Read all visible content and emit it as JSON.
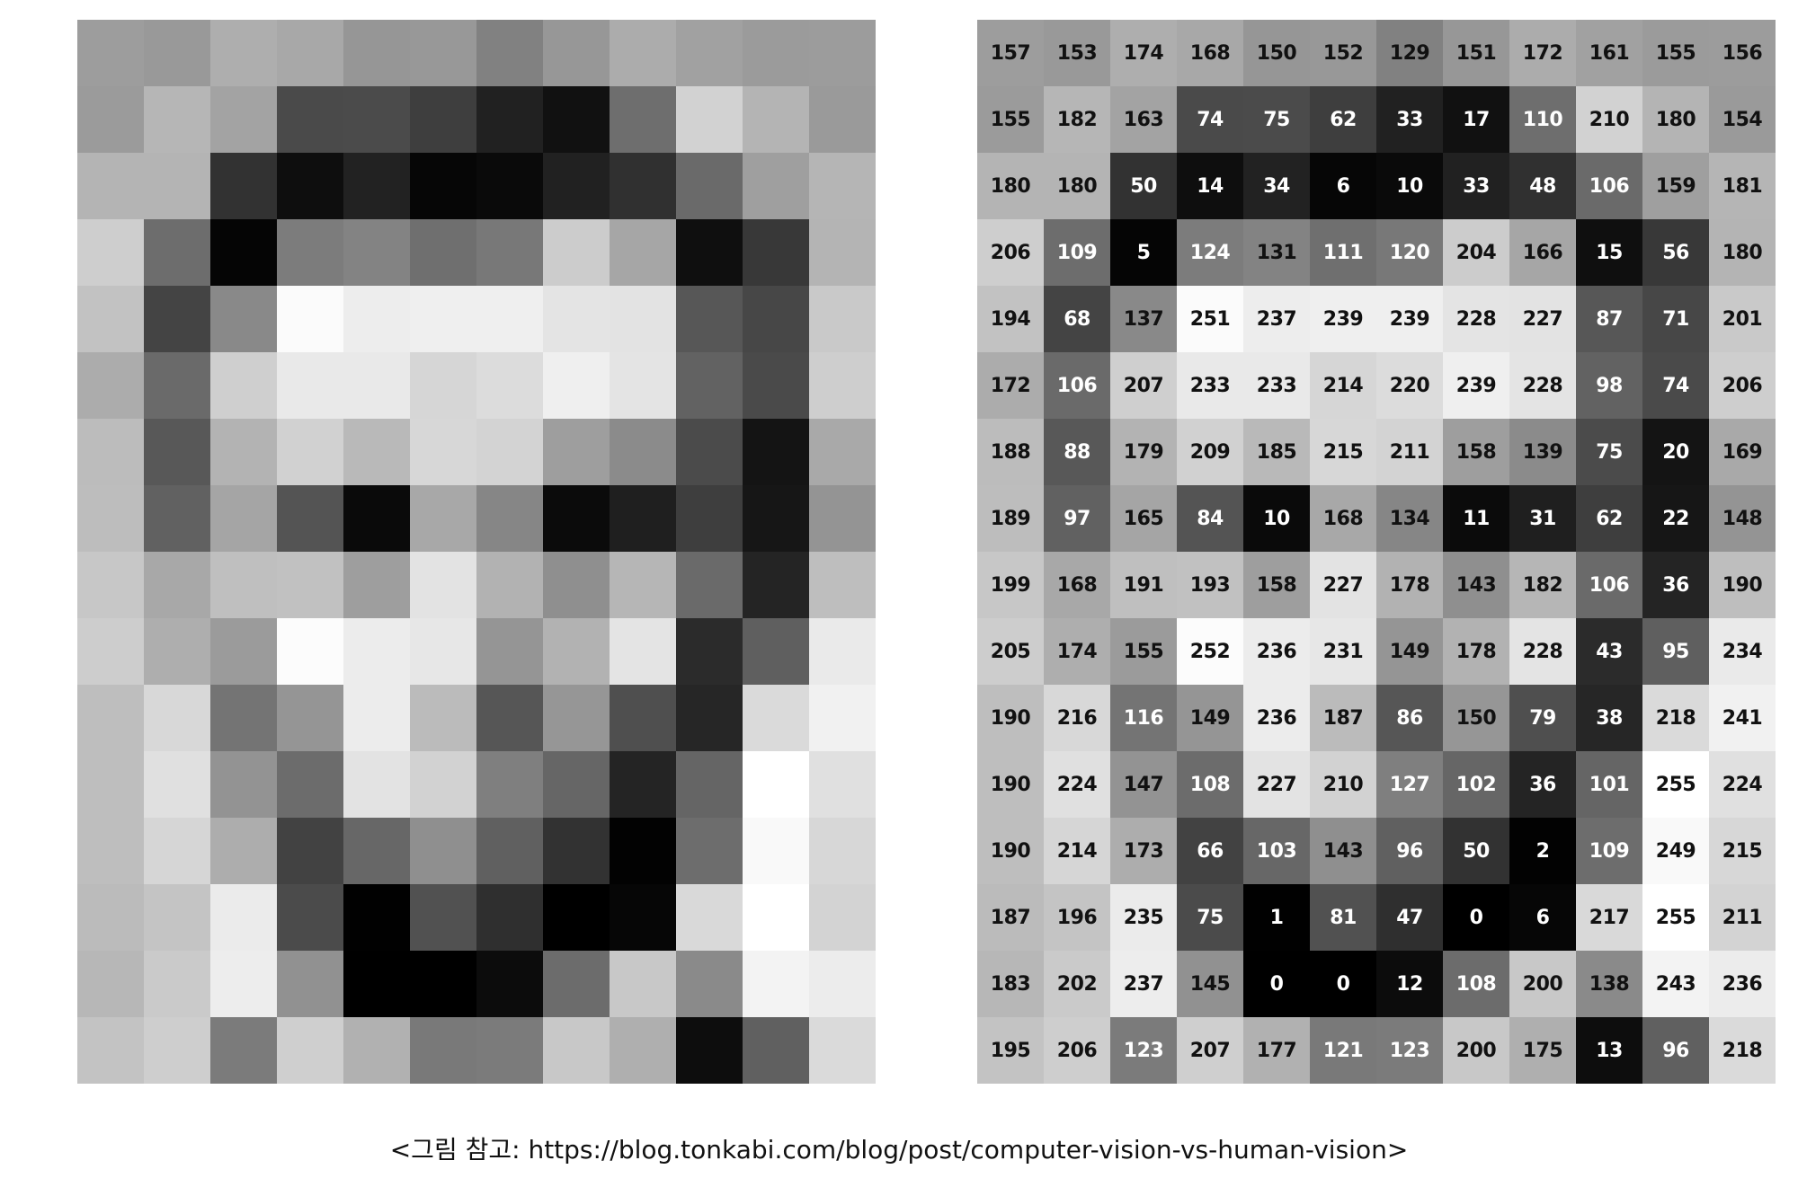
{
  "caption": "<그림 참고: https://blog.tonkabi.com/blog/post/computer-vision-vs-human-vision>",
  "pixel_values": [
    [
      157,
      153,
      174,
      168,
      150,
      152,
      129,
      151,
      172,
      161,
      155,
      156
    ],
    [
      155,
      182,
      163,
      74,
      75,
      62,
      33,
      17,
      110,
      210,
      180,
      154
    ],
    [
      180,
      180,
      50,
      14,
      34,
      6,
      10,
      33,
      48,
      106,
      159,
      181
    ],
    [
      206,
      109,
      5,
      124,
      131,
      111,
      120,
      204,
      166,
      15,
      56,
      180
    ],
    [
      194,
      68,
      137,
      251,
      237,
      239,
      239,
      228,
      227,
      87,
      71,
      201
    ],
    [
      172,
      106,
      207,
      233,
      233,
      214,
      220,
      239,
      228,
      98,
      74,
      206
    ],
    [
      188,
      88,
      179,
      209,
      185,
      215,
      211,
      158,
      139,
      75,
      20,
      169
    ],
    [
      189,
      97,
      165,
      84,
      10,
      168,
      134,
      11,
      31,
      62,
      22,
      148
    ],
    [
      199,
      168,
      191,
      193,
      158,
      227,
      178,
      143,
      182,
      106,
      36,
      190
    ],
    [
      205,
      174,
      155,
      252,
      236,
      231,
      149,
      178,
      228,
      43,
      95,
      234
    ],
    [
      190,
      216,
      116,
      149,
      236,
      187,
      86,
      150,
      79,
      38,
      218,
      241
    ],
    [
      190,
      224,
      147,
      108,
      227,
      210,
      127,
      102,
      36,
      101,
      255,
      224
    ],
    [
      190,
      214,
      173,
      66,
      103,
      143,
      96,
      50,
      2,
      109,
      249,
      215
    ],
    [
      187,
      196,
      235,
      75,
      1,
      81,
      47,
      0,
      6,
      217,
      255,
      211
    ],
    [
      183,
      202,
      237,
      145,
      0,
      0,
      12,
      108,
      200,
      138,
      243,
      236
    ],
    [
      195,
      206,
      123,
      207,
      177,
      121,
      123,
      200,
      175,
      13,
      96,
      218
    ]
  ]
}
